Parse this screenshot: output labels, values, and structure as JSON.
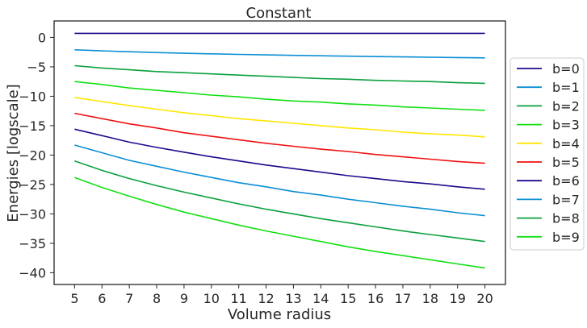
{
  "chart_data": {
    "type": "line",
    "title": "Constant",
    "xlabel": "Volume radius",
    "ylabel": "Energies [logscale]",
    "xlim": [
      4.25,
      20.75
    ],
    "ylim": [
      -42,
      2.8
    ],
    "xticks": [
      5,
      6,
      7,
      8,
      9,
      10,
      11,
      12,
      13,
      14,
      15,
      16,
      17,
      18,
      19,
      20
    ],
    "yticks": [
      0,
      -5,
      -10,
      -15,
      -20,
      -25,
      -30,
      -35,
      -40
    ],
    "grid": false,
    "legend_position": "outside-right",
    "x": [
      5,
      6,
      7,
      8,
      9,
      10,
      11,
      12,
      13,
      14,
      15,
      16,
      17,
      18,
      19,
      20
    ],
    "series": [
      {
        "name": "b=0",
        "color": "#1a0a8c",
        "values": [
          0.69,
          0.69,
          0.69,
          0.69,
          0.69,
          0.69,
          0.69,
          0.69,
          0.69,
          0.69,
          0.69,
          0.69,
          0.69,
          0.69,
          0.69,
          0.69
        ]
      },
      {
        "name": "b=1",
        "color": "#0a8fd4",
        "values": [
          -2.1,
          -2.28,
          -2.44,
          -2.57,
          -2.69,
          -2.79,
          -2.89,
          -2.97,
          -3.05,
          -3.12,
          -3.19,
          -3.25,
          -3.31,
          -3.37,
          -3.42,
          -3.47
        ]
      },
      {
        "name": "b=2",
        "color": "#0aa03c",
        "values": [
          -4.8,
          -5.2,
          -5.5,
          -5.8,
          -6.0,
          -6.2,
          -6.4,
          -6.6,
          -6.8,
          -7.0,
          -7.1,
          -7.3,
          -7.4,
          -7.5,
          -7.7,
          -7.8
        ]
      },
      {
        "name": "b=3",
        "color": "#12e012",
        "values": [
          -7.5,
          -8.0,
          -8.6,
          -9.0,
          -9.4,
          -9.8,
          -10.1,
          -10.5,
          -10.8,
          -11.0,
          -11.3,
          -11.5,
          -11.8,
          -12.0,
          -12.2,
          -12.4
        ]
      },
      {
        "name": "b=4",
        "color": "#ffe600",
        "values": [
          -10.2,
          -10.9,
          -11.6,
          -12.2,
          -12.8,
          -13.3,
          -13.8,
          -14.2,
          -14.6,
          -15.0,
          -15.4,
          -15.7,
          -16.1,
          -16.4,
          -16.6,
          -16.9
        ]
      },
      {
        "name": "b=5",
        "color": "#f01010",
        "values": [
          -12.9,
          -13.8,
          -14.7,
          -15.4,
          -16.2,
          -16.8,
          -17.4,
          -18.0,
          -18.5,
          -19.0,
          -19.4,
          -19.9,
          -20.3,
          -20.7,
          -21.1,
          -21.4
        ]
      },
      {
        "name": "b=6",
        "color": "#1a0a8c",
        "values": [
          -15.6,
          -16.7,
          -17.8,
          -18.7,
          -19.5,
          -20.3,
          -21.0,
          -21.7,
          -22.3,
          -22.9,
          -23.5,
          -24.0,
          -24.5,
          -24.9,
          -25.4,
          -25.8
        ]
      },
      {
        "name": "b=7",
        "color": "#0a8fd4",
        "values": [
          -18.3,
          -19.6,
          -20.9,
          -21.9,
          -22.9,
          -23.8,
          -24.7,
          -25.4,
          -26.2,
          -26.8,
          -27.5,
          -28.1,
          -28.7,
          -29.2,
          -29.8,
          -30.3
        ]
      },
      {
        "name": "b=8",
        "color": "#0aa03c",
        "values": [
          -21.0,
          -22.6,
          -24.0,
          -25.2,
          -26.3,
          -27.3,
          -28.3,
          -29.2,
          -30.0,
          -30.8,
          -31.5,
          -32.2,
          -32.9,
          -33.5,
          -34.1,
          -34.7
        ]
      },
      {
        "name": "b=9",
        "color": "#12e012",
        "values": [
          -23.8,
          -25.5,
          -27.0,
          -28.4,
          -29.7,
          -30.8,
          -31.9,
          -32.9,
          -33.8,
          -34.7,
          -35.6,
          -36.4,
          -37.1,
          -37.8,
          -38.5,
          -39.2
        ]
      }
    ]
  }
}
